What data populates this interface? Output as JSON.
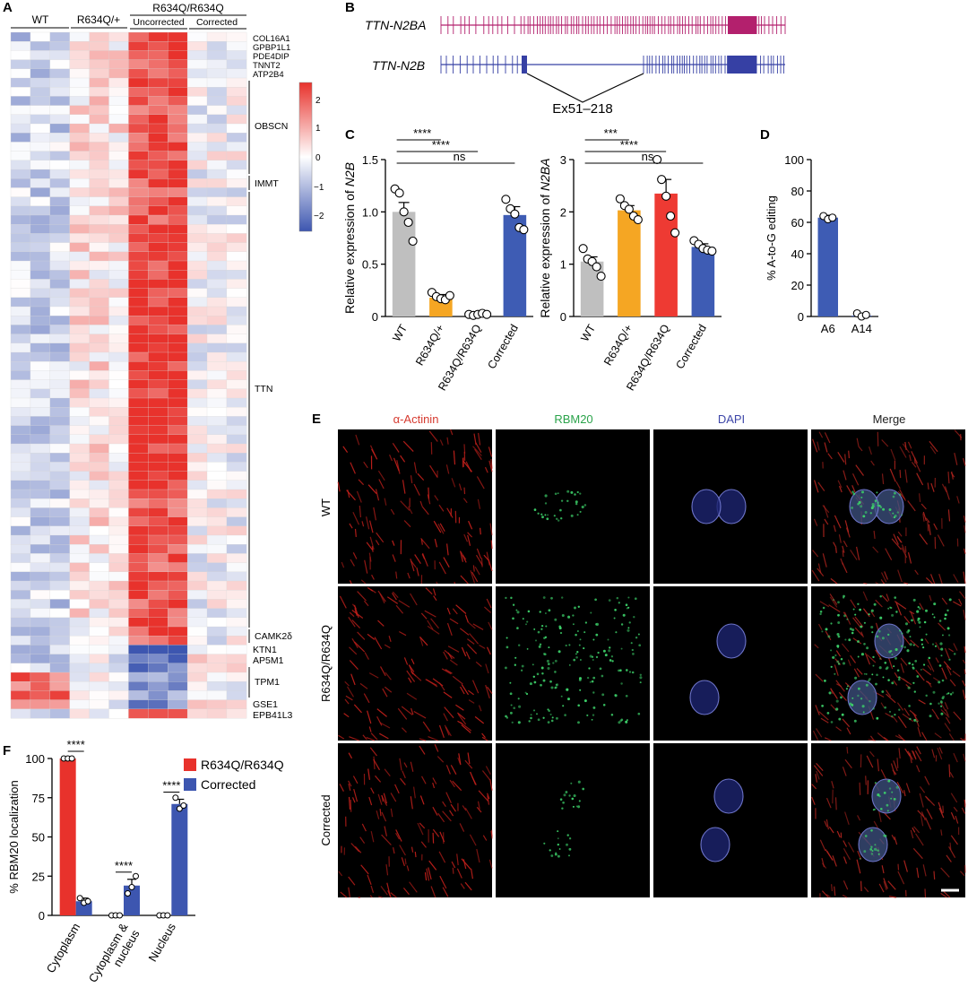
{
  "panels": {
    "A": "A",
    "B": "B",
    "C": "C",
    "D": "D",
    "E": "E",
    "F": "F"
  },
  "colors": {
    "wt": "#bfbfbf",
    "het": "#f5a623",
    "hom": "#ee3a33",
    "corr": "#3e5cb4",
    "n2ba": "#b3206d",
    "n2b": "#3640a4",
    "red": "#e8322c",
    "blue": "#3d56b0"
  },
  "heatmap": {
    "groups": [
      "WT",
      "R634Q/+",
      "R634Q/R634Q"
    ],
    "subgroups": [
      "Uncorrected",
      "Corrected"
    ],
    "genes_top": [
      "COL16A1",
      "GPBP1L1",
      "PDE4DIP",
      "TNNT2",
      "ATP2B4"
    ],
    "gene_groups": [
      "OBSCN",
      "IMMT",
      "TTN",
      "CAMK2δ",
      "KTN1",
      "AP5M1",
      "TPM1",
      "GSE1",
      "EPB41L3"
    ],
    "colorbar_ticks": [
      "2",
      "1",
      "0",
      "−1",
      "−2"
    ]
  },
  "panel_b": {
    "isoform1": "TTN-N2BA",
    "isoform2": "TTN-N2B",
    "exon_label": "Ex51–218"
  },
  "chart_data": [
    {
      "type": "bar",
      "panel": "C-left",
      "categories": [
        "WT",
        "R634Q/+",
        "R634Q/R634Q",
        "Corrected"
      ],
      "values": [
        1.0,
        0.18,
        0.02,
        0.97
      ],
      "errors": [
        0.09,
        0.03,
        0.01,
        0.08
      ],
      "points": [
        [
          1.22,
          1.18,
          1.0,
          0.9,
          0.72
        ],
        [
          0.23,
          0.19,
          0.17,
          0.16,
          0.2
        ],
        [
          0.02,
          0.01,
          0.02,
          0.03,
          0.02
        ],
        [
          1.12,
          1.03,
          0.98,
          0.85,
          0.83
        ]
      ],
      "ylabel_pre": "Relative expression of ",
      "ylabel_it": "N2B",
      "ylim": [
        0,
        1.5
      ],
      "yticks": [
        "0",
        "0.5",
        "1.0",
        "1.5"
      ],
      "sig": [
        {
          "from": 0,
          "to": 1,
          "label": "****"
        },
        {
          "from": 0,
          "to": 2,
          "label": "****"
        },
        {
          "from": 0,
          "to": 3,
          "label": "ns"
        }
      ]
    },
    {
      "type": "bar",
      "panel": "C-right",
      "categories": [
        "WT",
        "R634Q/+",
        "R634Q/R634Q",
        "Corrected"
      ],
      "values": [
        1.05,
        2.03,
        2.35,
        1.33
      ],
      "errors": [
        0.09,
        0.09,
        0.27,
        0.06
      ],
      "points": [
        [
          1.3,
          1.1,
          1.05,
          0.95,
          0.77
        ],
        [
          2.25,
          2.12,
          2.05,
          1.92,
          1.85
        ],
        [
          3.0,
          2.62,
          2.3,
          1.92,
          1.6
        ],
        [
          1.45,
          1.38,
          1.3,
          1.27,
          1.25
        ]
      ],
      "ylabel_pre": "Relative expression of ",
      "ylabel_it": "N2BA",
      "ylim": [
        0,
        3
      ],
      "yticks": [
        "0",
        "1",
        "2",
        "3"
      ],
      "sig": [
        {
          "from": 0,
          "to": 1,
          "label": "***"
        },
        {
          "from": 0,
          "to": 2,
          "label": "****"
        },
        {
          "from": 0,
          "to": 3,
          "label": "ns"
        }
      ]
    },
    {
      "type": "bar",
      "panel": "D",
      "categories": [
        "A6",
        "A14"
      ],
      "values": [
        63,
        0.5
      ],
      "errors": [
        1.5,
        0.5
      ],
      "points": [
        [
          64,
          62,
          63
        ],
        [
          2,
          0,
          1
        ]
      ],
      "ylabel": "% A-to-G editing",
      "ylim": [
        0,
        100
      ],
      "yticks": [
        "0",
        "20",
        "40",
        "60",
        "80",
        "100"
      ]
    },
    {
      "type": "bar",
      "panel": "F",
      "categories": [
        "Cytoplasm",
        "Cytoplasm & nucleus",
        "Nucleus"
      ],
      "series": [
        {
          "name": "R634Q/R634Q",
          "values": [
            100,
            0,
            0
          ],
          "errors": [
            0,
            0,
            0
          ],
          "points": [
            [
              100,
              100,
              100
            ],
            [
              0,
              0,
              0
            ],
            [
              0,
              0,
              0
            ]
          ]
        },
        {
          "name": "Corrected",
          "values": [
            9,
            19,
            71
          ],
          "errors": [
            2,
            4,
            3
          ],
          "points": [
            [
              11,
              8,
              9
            ],
            [
              14,
              18,
              25
            ],
            [
              75,
              68,
              70
            ]
          ]
        }
      ],
      "ylabel": "% RBM20 localization",
      "ylim": [
        0,
        100
      ],
      "yticks": [
        "0",
        "25",
        "50",
        "75",
        "100"
      ],
      "sig_label": "****"
    }
  ],
  "panel_e": {
    "columns": [
      "α-Actinin",
      "RBM20",
      "DAPI",
      "Merge"
    ],
    "rows": [
      "WT",
      "R634Q/R634Q",
      "Corrected"
    ]
  }
}
